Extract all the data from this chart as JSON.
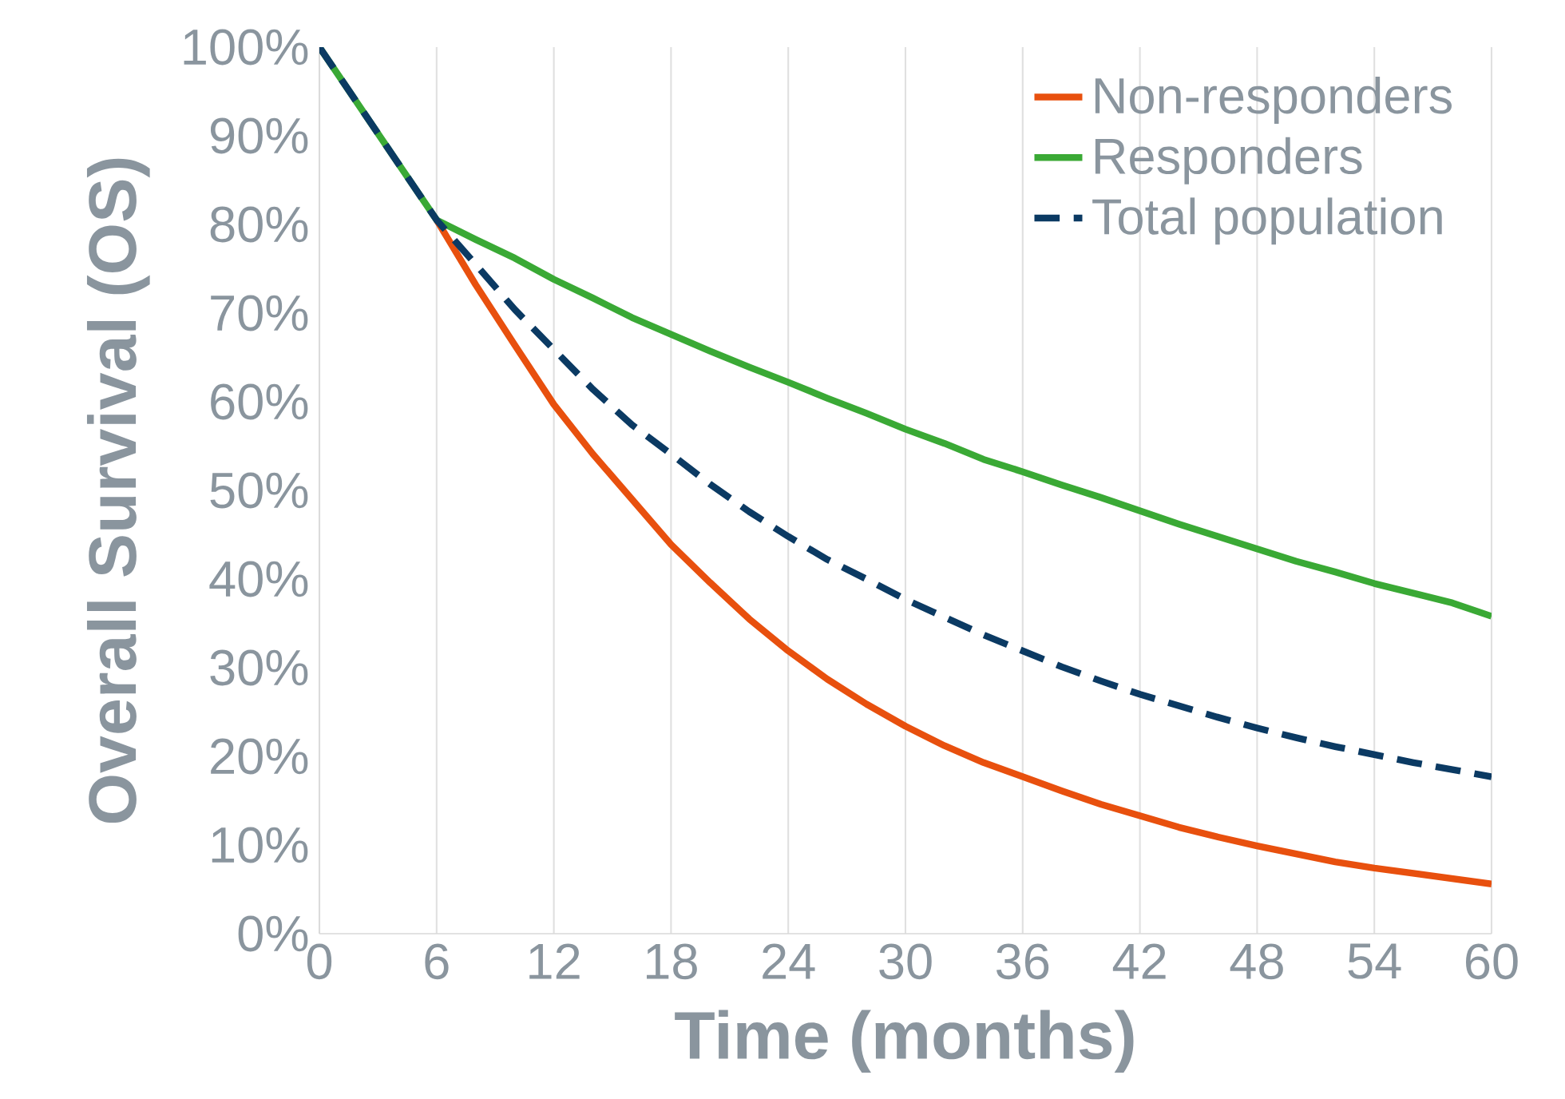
{
  "chart_data": {
    "type": "line",
    "xlabel": "Time (months)",
    "ylabel": "Overall Survival (OS)",
    "xlim": [
      0,
      60
    ],
    "xticks": [
      0,
      6,
      12,
      18,
      24,
      30,
      36,
      42,
      48,
      54,
      60
    ],
    "ylim": [
      0,
      100
    ],
    "yticks": [
      {
        "value": 0,
        "label": "0%"
      },
      {
        "value": 10,
        "label": "10%"
      },
      {
        "value": 20,
        "label": "20%"
      },
      {
        "value": 30,
        "label": "30%"
      },
      {
        "value": 40,
        "label": "40%"
      },
      {
        "value": 50,
        "label": "50%"
      },
      {
        "value": 60,
        "label": "60%"
      },
      {
        "value": 70,
        "label": "70%"
      },
      {
        "value": 80,
        "label": "80%"
      },
      {
        "value": 90,
        "label": "90%"
      },
      {
        "value": 100,
        "label": "100%"
      }
    ],
    "x": [
      0,
      2,
      4,
      6,
      8,
      10,
      12,
      14,
      16,
      18,
      20,
      22,
      24,
      26,
      28,
      30,
      32,
      34,
      36,
      38,
      40,
      42,
      44,
      46,
      48,
      50,
      52,
      54,
      56,
      58,
      60
    ],
    "grid": "x",
    "legend": "top right",
    "marker": "none",
    "series": [
      {
        "name": "Non-responders",
        "color": "#e8500e",
        "line_style": "solid",
        "values": [
          null,
          null,
          null,
          80.5,
          73.2,
          66.4,
          59.7,
          54.1,
          49.0,
          43.9,
          39.6,
          35.5,
          31.9,
          28.7,
          25.9,
          23.4,
          21.2,
          19.3,
          17.7,
          16.1,
          14.6,
          13.3,
          12.0,
          10.9,
          9.9,
          9.0,
          8.1,
          7.4,
          6.8,
          6.2,
          5.6
        ]
      },
      {
        "name": "Responders",
        "color": "#3aa935",
        "line_style": "solid",
        "values": [
          100,
          93.5,
          87,
          80.5,
          78.3,
          76.2,
          73.8,
          71.7,
          69.5,
          67.6,
          65.7,
          63.9,
          62.2,
          60.4,
          58.7,
          56.9,
          55.3,
          53.5,
          52.1,
          50.6,
          49.2,
          47.7,
          46.2,
          44.8,
          43.4,
          42.0,
          40.8,
          39.5,
          38.4,
          37.3,
          35.8
        ]
      },
      {
        "name": "Total population",
        "color": "#0b3a63",
        "line_style": "dashed",
        "values": [
          100,
          93.5,
          87,
          80.5,
          75.5,
          70.4,
          65.9,
          61.4,
          57.4,
          54.1,
          50.7,
          47.6,
          44.8,
          42.2,
          40.0,
          37.7,
          35.7,
          33.7,
          31.9,
          30.1,
          28.5,
          27.0,
          25.7,
          24.4,
          23.2,
          22.1,
          21.1,
          20.2,
          19.3,
          18.5,
          17.7
        ]
      }
    ]
  }
}
